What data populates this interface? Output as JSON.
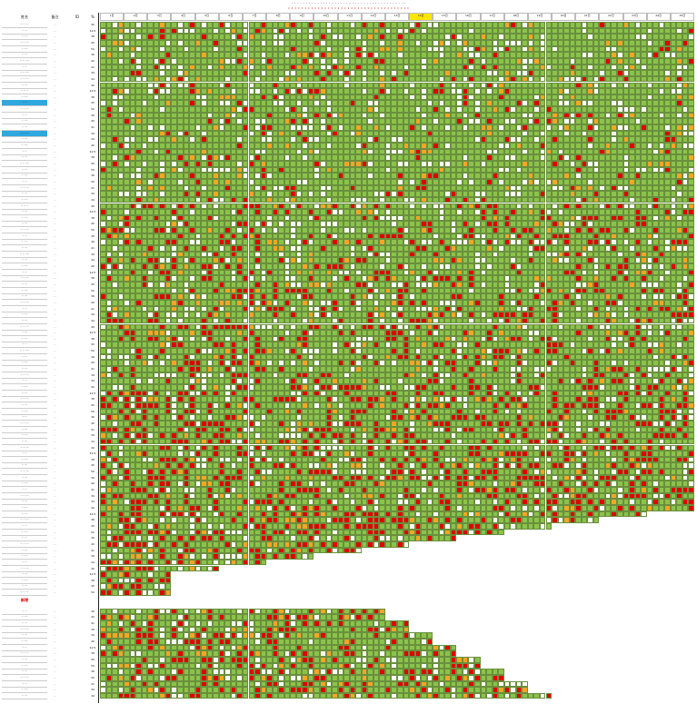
{
  "sheet": {
    "title_line1": "· · · · · · · · · · · · · · · · · · · · · · · · · · · · · · · · · · · · · · · ·",
    "title_line2": "· · · · · · · · · · · · · · · · · · · · · · · · · · · · · · · · · · · · ·",
    "columns": {
      "name": "姓名",
      "tag": "备注",
      "id": "ID",
      "pct": "%"
    },
    "date_headers": [
      "1日",
      "2日",
      "3日",
      "4日",
      "5日",
      "6日",
      "7日",
      "8日",
      "9日",
      "10日",
      "11日",
      "12日",
      "13日",
      "14日",
      "15日",
      "16日",
      "17日",
      "18日",
      "19日",
      "20日",
      "21日",
      "22日",
      "23日",
      "24日",
      "25日"
    ],
    "highlighted_header_index": 13,
    "status_colors": {
      "green": "#8bc34a",
      "red": "#e00000",
      "orange": "#f5a623",
      "white": "#ffffff"
    },
    "section_label": "新增",
    "row_names": [
      "·· ·· ···",
      "·· ···",
      "·· ····",
      "·· ·· ···",
      "·· ····",
      "·· ···",
      "·· ·· ····",
      "·· ··",
      "·· ·· ····",
      "·· ·· ···",
      "·· ···",
      "·· ·· ··",
      "·· ····",
      "·· ···",
      "·· ·· ···",
      "·· ··",
      "·· ····",
      "·· ···",
      "·· ·· ···",
      "·· ···",
      "·· ····",
      "·· ··",
      "·· ···",
      "·· ·· ····",
      "·· ···",
      "·· ····",
      "·· ··",
      "·· ·· ···",
      "·· ···",
      "·· ····",
      "·· ·· ··",
      "·· ···",
      "·· ····",
      "·· ···",
      "·· ·· ···",
      "·· ··",
      "·· ····",
      "·· ···",
      "·· ·· ····",
      "·· ···",
      "·· ····",
      "·· ··",
      "·· ·· ···",
      "·· ···",
      "·· ····",
      "·· ···",
      "·· ·· ···",
      "·· ··",
      "·· ····",
      "·· ···",
      "·· ·· ···",
      "·· ···",
      "·· ····",
      "·· ··",
      "·· ·· ····",
      "·· ···",
      "·· ····",
      "·· ···",
      "·· ·· ···",
      "·· ··",
      "·· ····",
      "·· ···",
      "·· ·· ···",
      "·· ···",
      "·· ····",
      "·· ··",
      "·· ·· ···",
      "·· ···",
      "·· ····",
      "·· ···",
      "·· ·· ···",
      "·· ··",
      "·· ····",
      "·· ···",
      "·· ·· ···",
      "·· ···",
      "·· ····",
      "·· ··",
      "·· ·· ···",
      "·· ···",
      "·· ····",
      "·· ···",
      "·· ·· ···",
      "·· ··",
      "·· ····",
      "·· ···",
      "·· ·· ···",
      "·· ···",
      "·· ····",
      "·· ··",
      "·· ·· ···",
      "·· ···",
      "·· ····",
      "·· ···",
      "·· ·· ···",
      "·· ··",
      "·· ····",
      "·· ···",
      "·· ·· ···",
      "·· ···",
      "·· ····",
      "·· ··",
      "·· ·· ···",
      "·· ···",
      "·· ····",
      "·· ···",
      "·· ·· ···",
      "·· ··",
      "·· ····",
      "·· ···",
      "·· ·· ···",
      "·· ···",
      "·· ····",
      "·· ··",
      "·· ·· ···",
      "·· ···",
      "·· ····",
      "·· ···",
      "·· ·· ···",
      "·· ··",
      "·· ····",
      "·· ···",
      "·· ·· ···",
      "·· ···",
      "·· ····",
      "·· ··",
      "·· ·· ···",
      "·· ···"
    ],
    "row_tags": [
      "···",
      "···",
      "···",
      "···",
      "···",
      "···",
      "···",
      "···",
      "···",
      "···"
    ],
    "row_pcts": [
      "40",
      "42.5",
      "38",
      "45",
      "50",
      "36",
      "40",
      "41",
      "39",
      "44"
    ]
  }
}
